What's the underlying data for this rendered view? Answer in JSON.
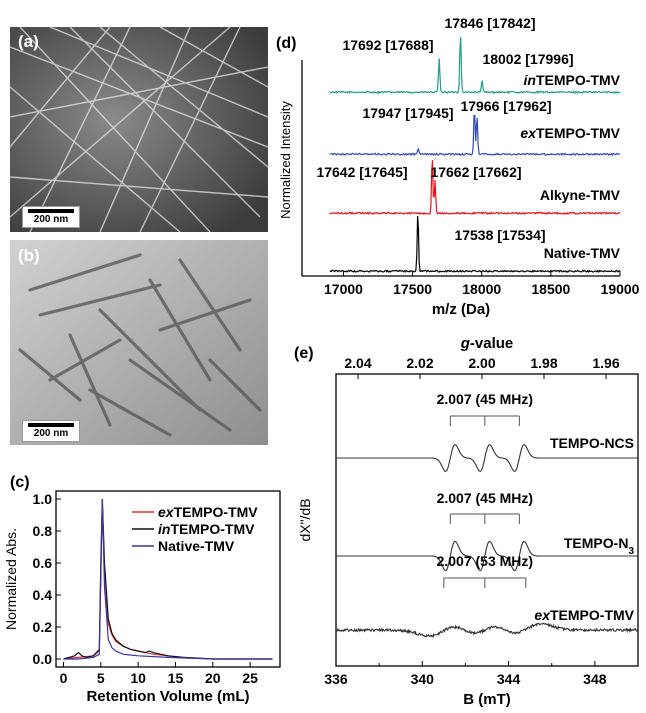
{
  "panels": {
    "a": {
      "label": "(a)",
      "scale": "200 nm"
    },
    "b": {
      "label": "(b)",
      "scale": "200 nm"
    }
  },
  "chart_data": [
    {
      "panel": "(c)",
      "type": "line",
      "xlabel": "Retention Volume (mL)",
      "ylabel": "Normalized Abs.",
      "xlim": [
        -1,
        29
      ],
      "ylim": [
        -0.05,
        1.05
      ],
      "xticks": [
        0,
        5,
        10,
        15,
        20,
        25
      ],
      "yticks": [
        0.0,
        0.2,
        0.4,
        0.6,
        0.8,
        1.0
      ],
      "legend_position": "top-right",
      "series": [
        {
          "name": "exTEMPO-TMV",
          "name_prefix": "ex",
          "name_suffix": "TEMPO-TMV",
          "color": "#e8323c",
          "x": [
            0,
            2,
            4,
            4.8,
            5.0,
            5.2,
            5.5,
            6,
            6.5,
            7,
            8,
            9,
            10,
            11,
            12,
            14,
            16,
            20,
            28
          ],
          "y": [
            0.0,
            0.01,
            0.02,
            0.05,
            0.55,
            0.98,
            0.55,
            0.22,
            0.15,
            0.11,
            0.08,
            0.06,
            0.05,
            0.04,
            0.03,
            0.02,
            0.01,
            0.0,
            0.0
          ]
        },
        {
          "name": "inTEMPO-TMV",
          "name_prefix": "in",
          "name_suffix": "TEMPO-TMV",
          "color": "#111111",
          "x": [
            0,
            1.5,
            2,
            2.5,
            3,
            4,
            4.8,
            5.0,
            5.2,
            5.5,
            6,
            6.5,
            7,
            8,
            9,
            10,
            11,
            11.5,
            12,
            14,
            16,
            20,
            28
          ],
          "y": [
            0.0,
            0.02,
            0.04,
            0.02,
            0.01,
            0.02,
            0.06,
            0.6,
            1.0,
            0.6,
            0.25,
            0.16,
            0.12,
            0.08,
            0.06,
            0.05,
            0.04,
            0.05,
            0.04,
            0.02,
            0.01,
            0.0,
            0.0
          ]
        },
        {
          "name": "Native-TMV",
          "color": "#3a34a8",
          "x": [
            0,
            2,
            4,
            4.8,
            5.0,
            5.2,
            5.5,
            6,
            6.5,
            7,
            8,
            10,
            14,
            20,
            28
          ],
          "y": [
            0.0,
            0.0,
            0.01,
            0.03,
            0.5,
            1.0,
            0.45,
            0.12,
            0.07,
            0.05,
            0.03,
            0.02,
            0.01,
            0.0,
            0.0
          ]
        }
      ]
    },
    {
      "panel": "(d)",
      "type": "line",
      "xlabel": "m/z (Da)",
      "ylabel": "Normalized Intensity",
      "xlim": [
        16700,
        19000
      ],
      "xticks": [
        17000,
        17500,
        18000,
        18500,
        19000
      ],
      "series": [
        {
          "name": "inTEMPO-TMV",
          "name_prefix": "in",
          "name_suffix": "TEMPO-TMV",
          "color": "#1f9e8a",
          "peaks": [
            {
              "x": 17692,
              "h": 0.55
            },
            {
              "x": 17846,
              "h": 1.0
            },
            {
              "x": 18002,
              "h": 0.2
            }
          ],
          "annotations": [
            "17692 [17688]",
            "17846 [17842]",
            "18002 [17996]"
          ]
        },
        {
          "name": "exTEMPO-TMV",
          "name_prefix": "ex",
          "name_suffix": "TEMPO-TMV",
          "color": "#3049b8",
          "peaks": [
            {
              "x": 17947,
              "h": 0.85
            },
            {
              "x": 17966,
              "h": 0.7
            },
            {
              "x": 17540,
              "h": 0.1
            }
          ],
          "annotations": [
            "17947 [17945]",
            "17966 [17962]"
          ]
        },
        {
          "name": "Alkyne-TMV",
          "color": "#e8141c",
          "peaks": [
            {
              "x": 17642,
              "h": 0.95
            },
            {
              "x": 17662,
              "h": 0.55
            }
          ],
          "annotations": [
            "17642 [17645]",
            "17662 [17662]"
          ]
        },
        {
          "name": "Native-TMV",
          "color": "#000000",
          "peaks": [
            {
              "x": 17538,
              "h": 1.0
            }
          ],
          "annotations": [
            "17538 [17534]"
          ]
        }
      ]
    },
    {
      "panel": "(e)",
      "type": "line",
      "xlabel": "B (mT)",
      "ylabel": "dX\"/dB",
      "xlim": [
        336,
        350
      ],
      "xticks": [
        336,
        340,
        344,
        348
      ],
      "top_axis_label": "g-value",
      "top_ticks": [
        "2.04",
        "2.02",
        "2.00",
        "1.98",
        "1.96"
      ],
      "series": [
        {
          "name": "TEMPO-NCS",
          "color": "#333333",
          "center": 342.9,
          "split": 1.6,
          "width": 0.22,
          "annotation": "2.007 (45 MHz)"
        },
        {
          "name": "TEMPO-N3",
          "name_prefix": "TEMPO-N",
          "name_sub": "3",
          "color": "#333333",
          "center": 342.9,
          "split": 1.6,
          "width": 0.22,
          "annotation": "2.007 (45 MHz)"
        },
        {
          "name": "exTEMPO-TMV",
          "name_prefix": "ex",
          "name_suffix": "TEMPO-TMV",
          "color": "#333333",
          "center": 342.9,
          "split": 1.9,
          "width": 0.7,
          "annotation": "2.007 (53 MHz)"
        }
      ]
    }
  ]
}
